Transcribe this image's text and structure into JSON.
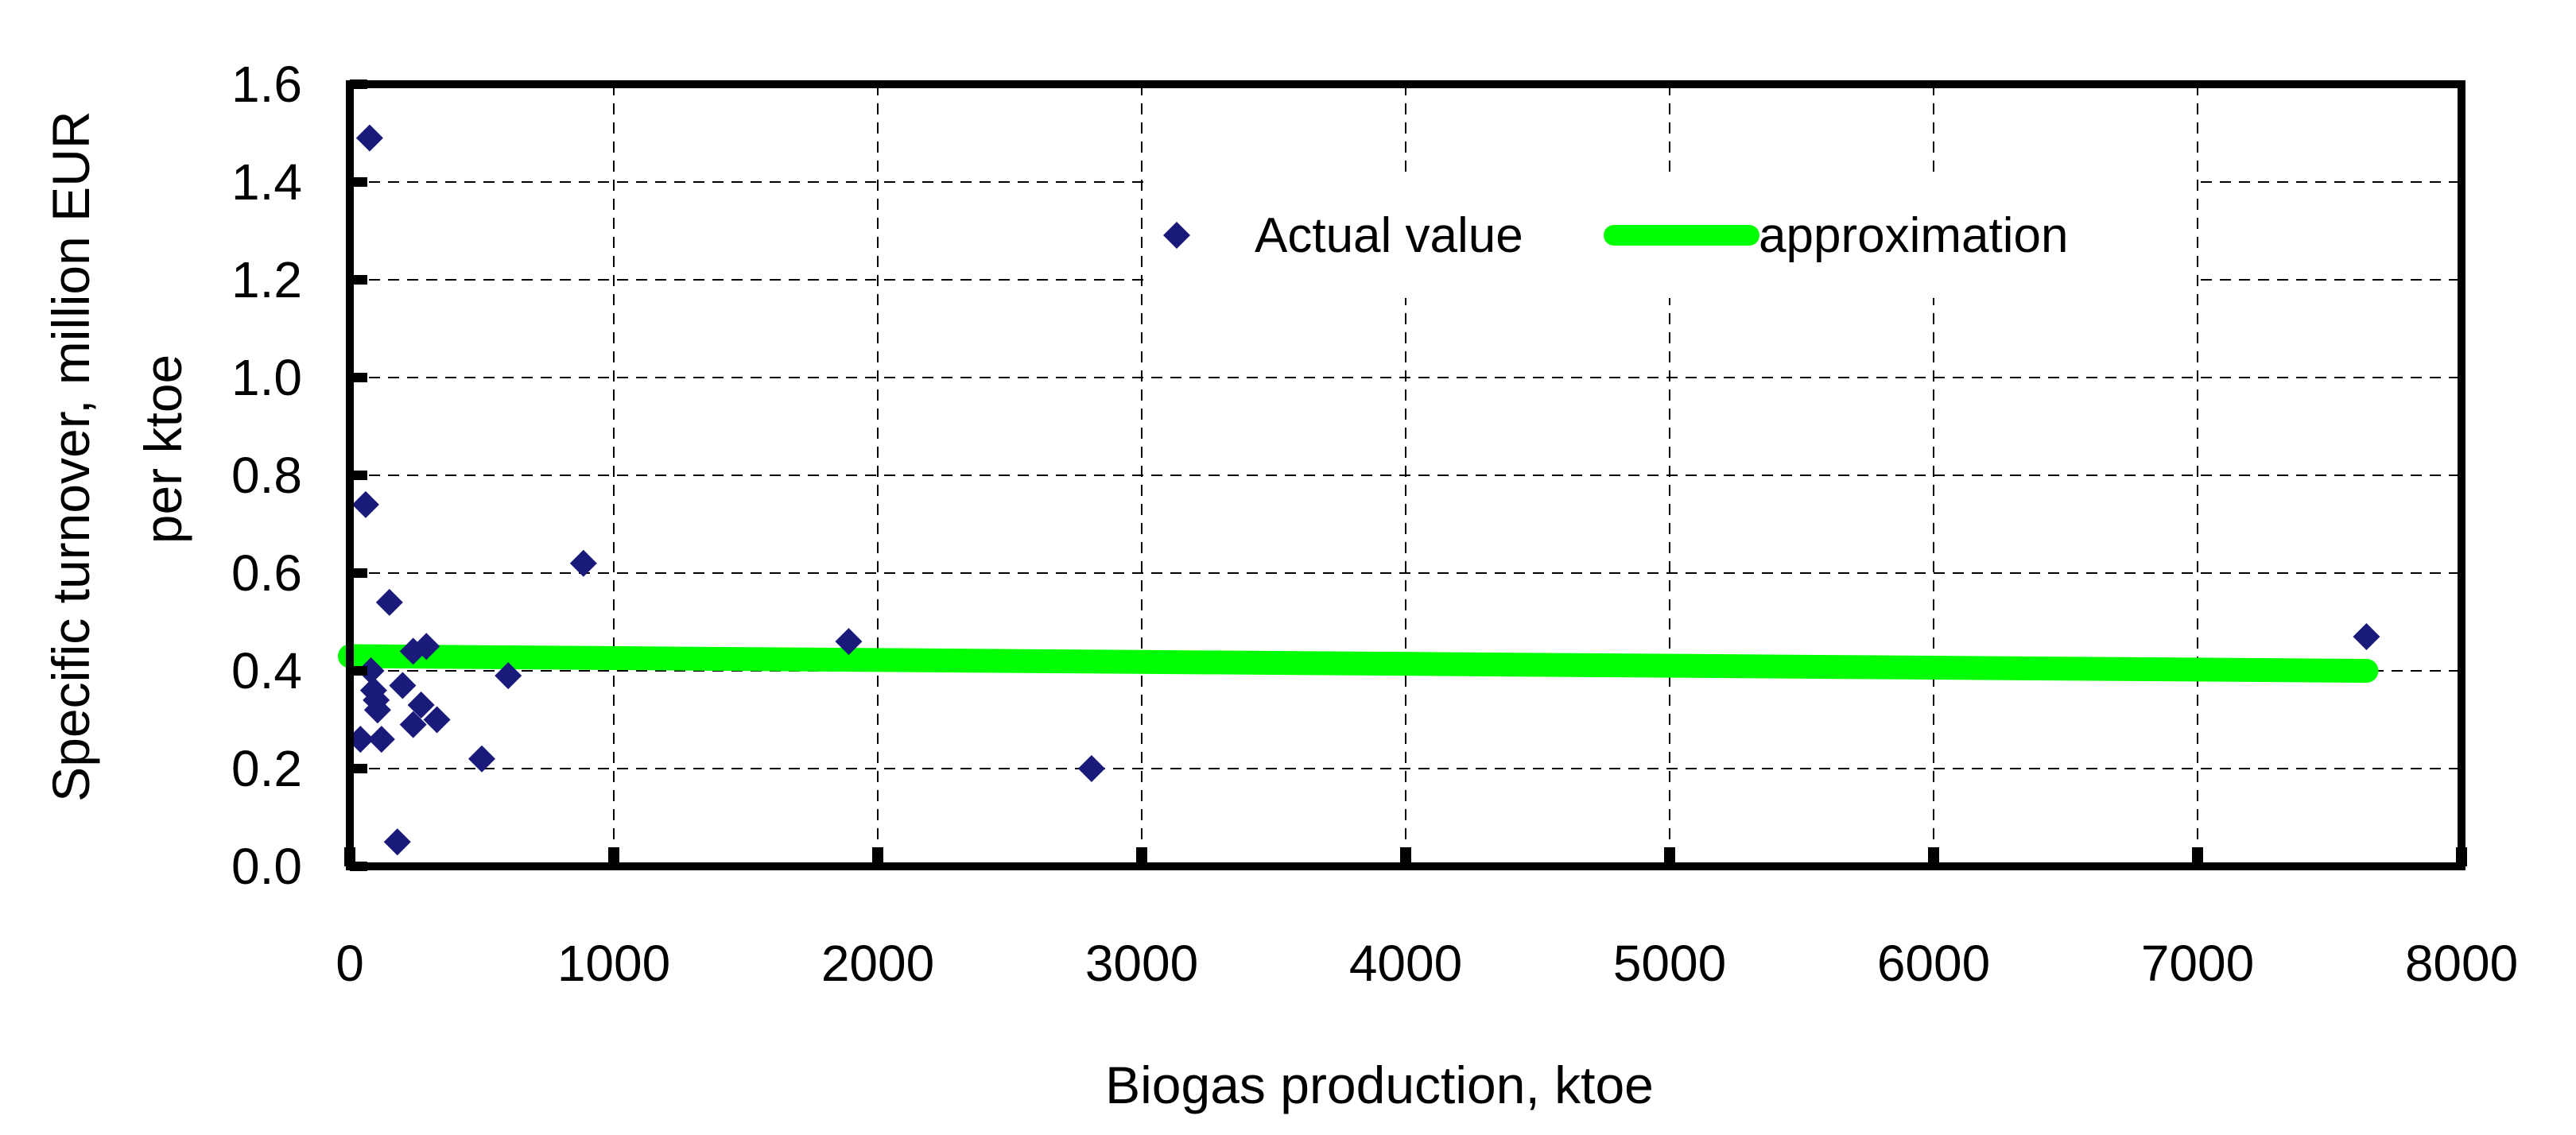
{
  "chart_data": {
    "type": "scatter",
    "title": "",
    "xlabel": "Biogas production, ktoe",
    "ylabel_lines": [
      "Specific turnover, million EUR",
      "per ktoe"
    ],
    "xlim": [
      0,
      8000
    ],
    "ylim": [
      0.0,
      1.6
    ],
    "x_ticks": [
      "0",
      "1000",
      "2000",
      "3000",
      "4000",
      "5000",
      "6000",
      "7000",
      "8000"
    ],
    "y_ticks": [
      "0.0",
      "0.2",
      "0.4",
      "0.6",
      "0.8",
      "1.0",
      "1.2",
      "1.4",
      "1.6"
    ],
    "grid": true,
    "legend_position": "top-right",
    "series": [
      {
        "name": "Actual value",
        "kind": "points",
        "marker": "diamond",
        "color": "#1a1a7a",
        "points": [
          [
            75,
            1.49
          ],
          [
            60,
            0.74
          ],
          [
            885,
            0.62
          ],
          [
            150,
            0.54
          ],
          [
            1890,
            0.46
          ],
          [
            7640,
            0.47
          ],
          [
            290,
            0.45
          ],
          [
            240,
            0.44
          ],
          [
            80,
            0.4
          ],
          [
            600,
            0.39
          ],
          [
            200,
            0.37
          ],
          [
            90,
            0.36
          ],
          [
            100,
            0.34
          ],
          [
            270,
            0.33
          ],
          [
            105,
            0.32
          ],
          [
            330,
            0.3
          ],
          [
            240,
            0.29
          ],
          [
            40,
            0.26
          ],
          [
            120,
            0.26
          ],
          [
            500,
            0.22
          ],
          [
            2810,
            0.2
          ],
          [
            180,
            0.05
          ]
        ]
      },
      {
        "name": "approximation",
        "kind": "line",
        "color": "#00ff00",
        "points": [
          [
            0,
            0.43
          ],
          [
            7640,
            0.4
          ]
        ]
      }
    ]
  }
}
